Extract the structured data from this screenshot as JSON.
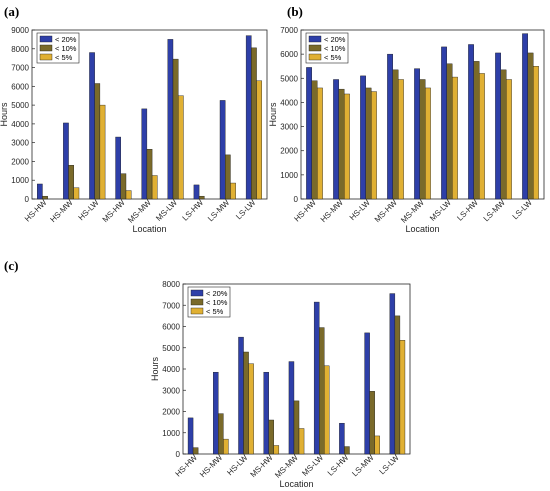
{
  "colors": {
    "s1": "#2e3fa8",
    "s2": "#7a6a2a",
    "s3": "#e0b033"
  },
  "chart_data": [
    {
      "panel_label": "(a)",
      "type": "bar",
      "categories": [
        "HS-HW",
        "HS-MW",
        "HS-LW",
        "MS-HW",
        "MS-MW",
        "MS-LW",
        "LS-HW",
        "LS-MW",
        "LS-LW"
      ],
      "series": [
        {
          "name": "< 20%",
          "values": [
            800,
            4050,
            7800,
            3300,
            4800,
            8500,
            750,
            5250,
            8700
          ]
        },
        {
          "name": "< 10%",
          "values": [
            150,
            1800,
            6150,
            1350,
            2650,
            7450,
            150,
            2350,
            8050
          ]
        },
        {
          "name": "< 5%",
          "values": [
            0,
            600,
            5000,
            450,
            1250,
            5500,
            0,
            850,
            6300
          ]
        }
      ],
      "xlabel": "Location",
      "ylabel": "Hours",
      "ylim": [
        0,
        9000
      ],
      "yticks": [
        0,
        1000,
        2000,
        3000,
        4000,
        5000,
        6000,
        7000,
        8000,
        9000
      ],
      "legend": "top-left"
    },
    {
      "panel_label": "(b)",
      "type": "bar",
      "categories": [
        "HS-HW",
        "HS-MW",
        "HS-LW",
        "MS-HW",
        "MS-MW",
        "MS-LW",
        "LS-HW",
        "LS-MW",
        "LS-LW"
      ],
      "series": [
        {
          "name": "< 20%",
          "values": [
            5450,
            4950,
            5100,
            6000,
            5400,
            6300,
            6400,
            6050,
            6850
          ]
        },
        {
          "name": "< 10%",
          "values": [
            4900,
            4550,
            4600,
            5350,
            4950,
            5600,
            5700,
            5350,
            6050
          ]
        },
        {
          "name": "< 5%",
          "values": [
            4600,
            4350,
            4450,
            4950,
            4600,
            5050,
            5200,
            4950,
            5500
          ]
        }
      ],
      "xlabel": "Location",
      "ylabel": "Hours",
      "ylim": [
        0,
        7000
      ],
      "yticks": [
        0,
        1000,
        2000,
        3000,
        4000,
        5000,
        6000,
        7000
      ],
      "legend": "top-left"
    },
    {
      "panel_label": "(c)",
      "type": "bar",
      "categories": [
        "HS-HW",
        "HS-MW",
        "HS-LW",
        "MS-HW",
        "MS-MW",
        "MS-LW",
        "LS-HW",
        "LS-MW",
        "LS-LW"
      ],
      "series": [
        {
          "name": "< 20%",
          "values": [
            1700,
            3850,
            5500,
            3850,
            4350,
            7150,
            1450,
            5700,
            7550
          ]
        },
        {
          "name": "< 10%",
          "values": [
            300,
            1900,
            4800,
            1600,
            2500,
            5950,
            350,
            2950,
            6500
          ]
        },
        {
          "name": "< 5%",
          "values": [
            0,
            700,
            4250,
            400,
            1200,
            4150,
            0,
            850,
            5350
          ]
        }
      ],
      "xlabel": "Location",
      "ylabel": "Hours",
      "ylim": [
        0,
        8000
      ],
      "yticks": [
        0,
        1000,
        2000,
        3000,
        4000,
        5000,
        6000,
        7000,
        8000
      ],
      "legend": "top-left"
    }
  ]
}
